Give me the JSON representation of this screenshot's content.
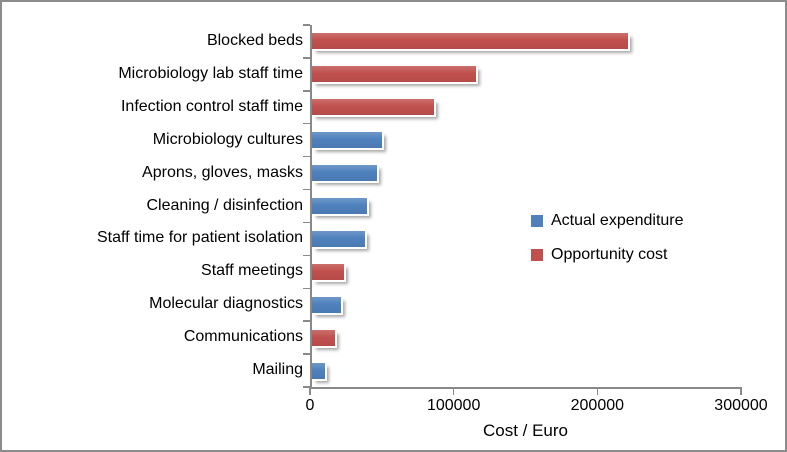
{
  "chart_data": {
    "type": "bar",
    "orientation": "horizontal",
    "title": "",
    "xlabel": "Cost / Euro",
    "ylabel": "",
    "xlim": [
      0,
      300000
    ],
    "x_ticks": [
      0,
      100000,
      200000,
      300000
    ],
    "x_tick_labels": [
      "0",
      "100000",
      "200000",
      "300000"
    ],
    "grid": false,
    "legend_position": "middle-right",
    "legend": [
      {
        "label": "Actual expenditure",
        "color": "#4F81BD"
      },
      {
        "label": "Opportunity cost",
        "color": "#C0504D"
      }
    ],
    "categories": [
      "Blocked beds",
      "Microbiology lab staff time",
      "Infection control staff time",
      "Microbiology cultures",
      "Aprons, gloves, masks",
      "Cleaning / disinfection",
      "Staff time for patient isolation",
      "Staff meetings",
      "Molecular diagnostics",
      "Communications",
      "Mailing"
    ],
    "bars": [
      {
        "category": "Blocked beds",
        "value": 220000,
        "series": "Opportunity cost"
      },
      {
        "category": "Microbiology lab staff time",
        "value": 114000,
        "series": "Opportunity cost"
      },
      {
        "category": "Infection control staff time",
        "value": 85000,
        "series": "Opportunity cost"
      },
      {
        "category": "Microbiology cultures",
        "value": 49000,
        "series": "Actual expenditure"
      },
      {
        "category": "Aprons, gloves, masks",
        "value": 45000,
        "series": "Actual expenditure"
      },
      {
        "category": "Cleaning / disinfection",
        "value": 38000,
        "series": "Actual expenditure"
      },
      {
        "category": "Staff time for patient isolation",
        "value": 37000,
        "series": "Actual expenditure"
      },
      {
        "category": "Staff meetings",
        "value": 22000,
        "series": "Opportunity cost"
      },
      {
        "category": "Molecular diagnostics",
        "value": 20000,
        "series": "Actual expenditure"
      },
      {
        "category": "Communications",
        "value": 16000,
        "series": "Opportunity cost"
      },
      {
        "category": "Mailing",
        "value": 9000,
        "series": "Actual expenditure"
      }
    ]
  },
  "style": {
    "axis_color": "#898989",
    "border_color": "#8C8C8C",
    "text_color": "#000000",
    "background": "#FFFFFF",
    "bar_blue": "#4F81BD",
    "bar_red": "#C0504D"
  }
}
